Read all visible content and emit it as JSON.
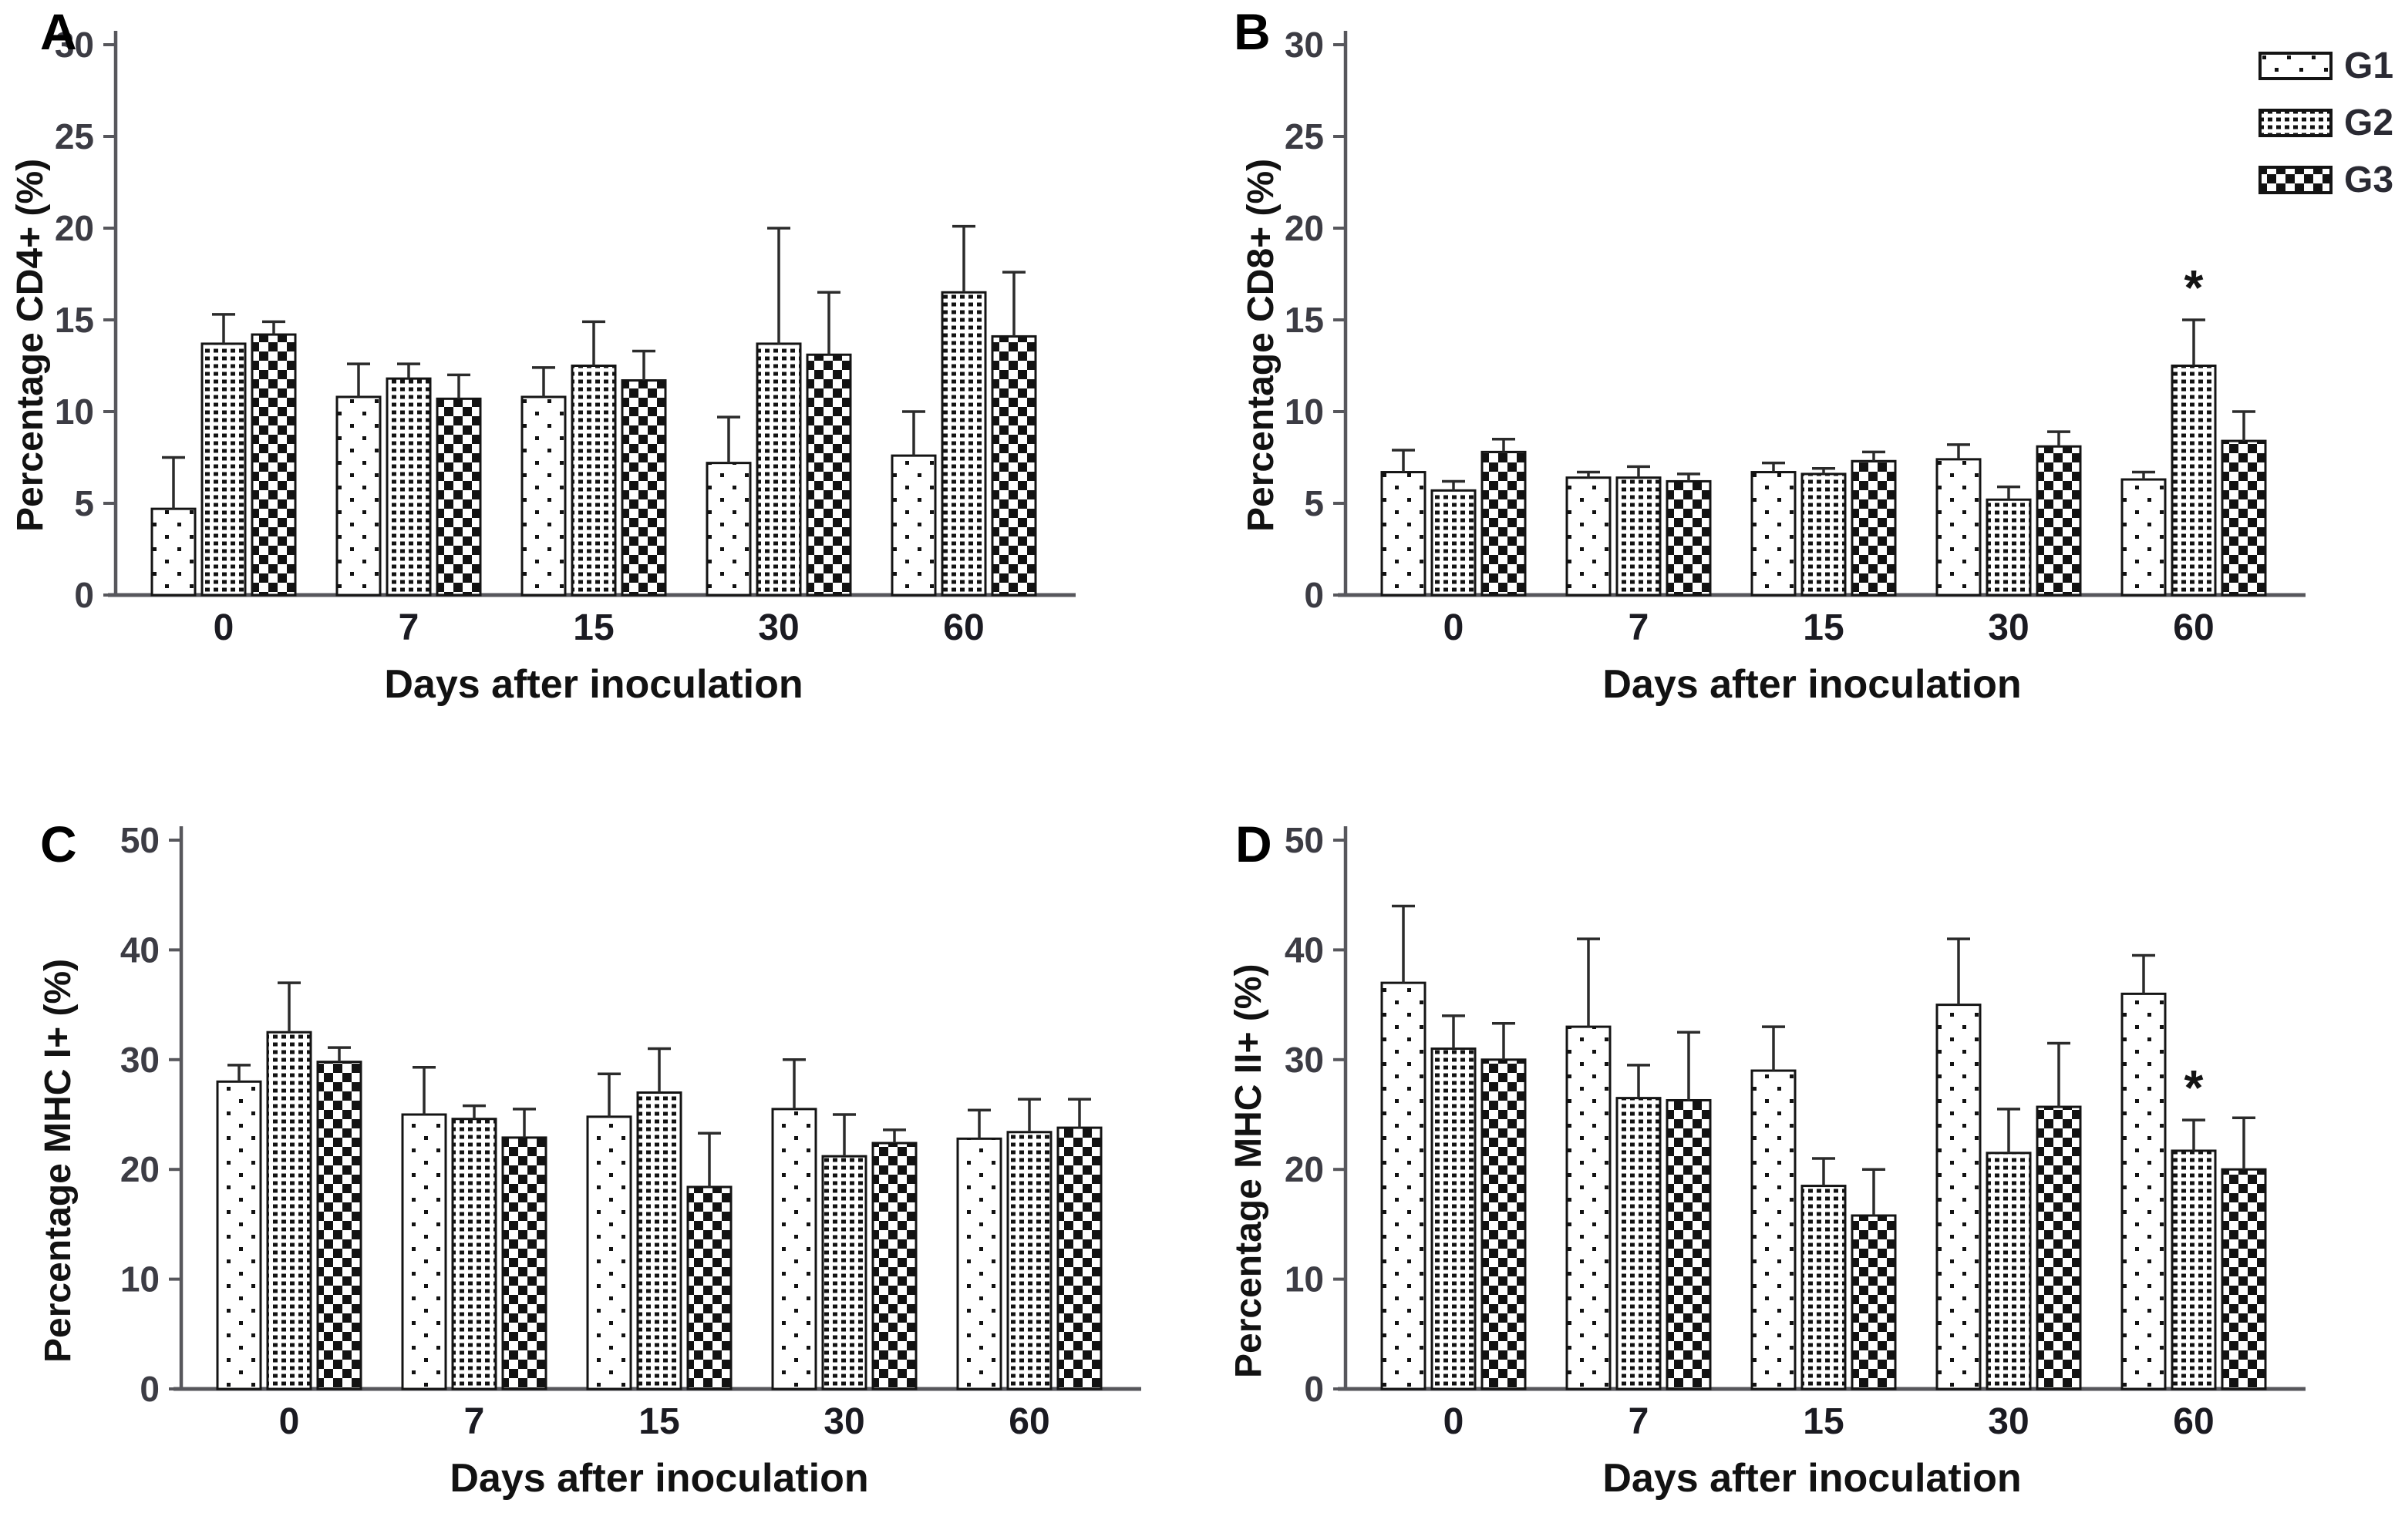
{
  "figure": {
    "background": "#ffffff",
    "axis_color": "#57575c",
    "bar_outline_color": "#141414",
    "pattern_ink_color": "#121212",
    "error_bar_color": "#2b2b2b",
    "tick_label_color": "#3c3c44",
    "category_label_color": "#1b1b22",
    "text_color": "#121212"
  },
  "legend": {
    "position": "top-right",
    "items": [
      {
        "label": "G1",
        "pattern": "sparse-dots"
      },
      {
        "label": "G2",
        "pattern": "dense-dot-grid"
      },
      {
        "label": "G3",
        "pattern": "checkerboard"
      }
    ]
  },
  "chart_data": [
    {
      "type": "bar",
      "panel_label": "A",
      "ylabel": "Percentage CD4+ (%)",
      "xlabel": "Days after inoculation",
      "categories": [
        "0",
        "7",
        "15",
        "30",
        "60"
      ],
      "ylim": [
        0,
        30
      ],
      "ytick_step": 5,
      "grid": false,
      "series": [
        {
          "name": "G1",
          "values": [
            4.7,
            10.8,
            10.8,
            7.2,
            7.6
          ],
          "errors": [
            2.8,
            1.8,
            1.6,
            2.5,
            2.4
          ]
        },
        {
          "name": "G2",
          "values": [
            13.7,
            11.8,
            12.5,
            13.7,
            16.5
          ],
          "errors": [
            1.6,
            0.8,
            2.4,
            6.3,
            3.6
          ]
        },
        {
          "name": "G3",
          "values": [
            14.2,
            10.7,
            11.7,
            13.1,
            14.1
          ],
          "errors": [
            0.7,
            1.3,
            1.6,
            3.4,
            3.5
          ]
        }
      ],
      "annotations": []
    },
    {
      "type": "bar",
      "panel_label": "B",
      "ylabel": "Percentage CD8+ (%)",
      "xlabel": "Days after inoculation",
      "categories": [
        "0",
        "7",
        "15",
        "30",
        "60"
      ],
      "ylim": [
        0,
        30
      ],
      "ytick_step": 5,
      "grid": false,
      "series": [
        {
          "name": "G1",
          "values": [
            6.7,
            6.4,
            6.7,
            7.4,
            6.3
          ],
          "errors": [
            1.2,
            0.3,
            0.5,
            0.8,
            0.4
          ]
        },
        {
          "name": "G2",
          "values": [
            5.7,
            6.4,
            6.6,
            5.2,
            12.5
          ],
          "errors": [
            0.5,
            0.6,
            0.3,
            0.7,
            2.5
          ]
        },
        {
          "name": "G3",
          "values": [
            7.8,
            6.2,
            7.3,
            8.1,
            8.4
          ],
          "errors": [
            0.7,
            0.4,
            0.5,
            0.8,
            1.6
          ]
        }
      ],
      "annotations": [
        {
          "series": "G2",
          "category_index": 4,
          "text": "*"
        }
      ]
    },
    {
      "type": "bar",
      "panel_label": "C",
      "ylabel": "Percentage MHC I+ (%)",
      "xlabel": "Days after inoculation",
      "categories": [
        "0",
        "7",
        "15",
        "30",
        "60"
      ],
      "ylim": [
        0,
        50
      ],
      "ytick_step": 10,
      "grid": false,
      "series": [
        {
          "name": "G1",
          "values": [
            28.0,
            25.0,
            24.8,
            25.5,
            22.8
          ],
          "errors": [
            1.5,
            4.3,
            3.9,
            4.5,
            2.6
          ]
        },
        {
          "name": "G2",
          "values": [
            32.5,
            24.6,
            27.0,
            21.2,
            23.4
          ],
          "errors": [
            4.5,
            1.2,
            4.0,
            3.8,
            3.0
          ]
        },
        {
          "name": "G3",
          "values": [
            29.8,
            22.9,
            18.4,
            22.4,
            23.8
          ],
          "errors": [
            1.3,
            2.6,
            4.9,
            1.2,
            2.6
          ]
        }
      ],
      "annotations": []
    },
    {
      "type": "bar",
      "panel_label": "D",
      "ylabel": "Percentage MHC II+ (%)",
      "xlabel": "Days after inoculation",
      "categories": [
        "0",
        "7",
        "15",
        "30",
        "60"
      ],
      "ylim": [
        0,
        50
      ],
      "ytick_step": 10,
      "grid": false,
      "series": [
        {
          "name": "G1",
          "values": [
            37.0,
            33.0,
            29.0,
            35.0,
            36.0
          ],
          "errors": [
            7.0,
            8.0,
            4.0,
            6.0,
            3.5
          ]
        },
        {
          "name": "G2",
          "values": [
            31.0,
            26.5,
            18.5,
            21.5,
            21.7
          ],
          "errors": [
            3.0,
            3.0,
            2.5,
            4.0,
            2.8
          ]
        },
        {
          "name": "G3",
          "values": [
            30.0,
            26.3,
            15.8,
            25.7,
            20.0
          ],
          "errors": [
            3.3,
            6.2,
            4.2,
            5.8,
            4.7
          ]
        }
      ],
      "annotations": [
        {
          "series": "G2",
          "category_index": 4,
          "text": "*"
        }
      ]
    }
  ]
}
